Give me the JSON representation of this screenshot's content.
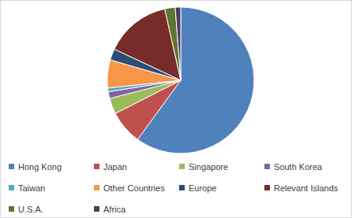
{
  "chart_data": {
    "type": "pie",
    "categories": [
      "Hong Kong",
      "Japan",
      "Singapore",
      "South Korea",
      "Taiwan",
      "Other Countries",
      "Europe",
      "Relevant Islands",
      "U.S.A.",
      "Africa"
    ],
    "values": [
      60,
      7.5,
      3.5,
      1.5,
      0.8,
      6.2,
      2.5,
      14.5,
      2.3,
      1.2
    ],
    "colors": [
      "#4F81BD",
      "#C0504D",
      "#9BBB59",
      "#8064A2",
      "#4BACC6",
      "#F79646",
      "#2C4D75",
      "#772C2A",
      "#5F7530",
      "#4D3B62"
    ],
    "legend": "bottom"
  }
}
